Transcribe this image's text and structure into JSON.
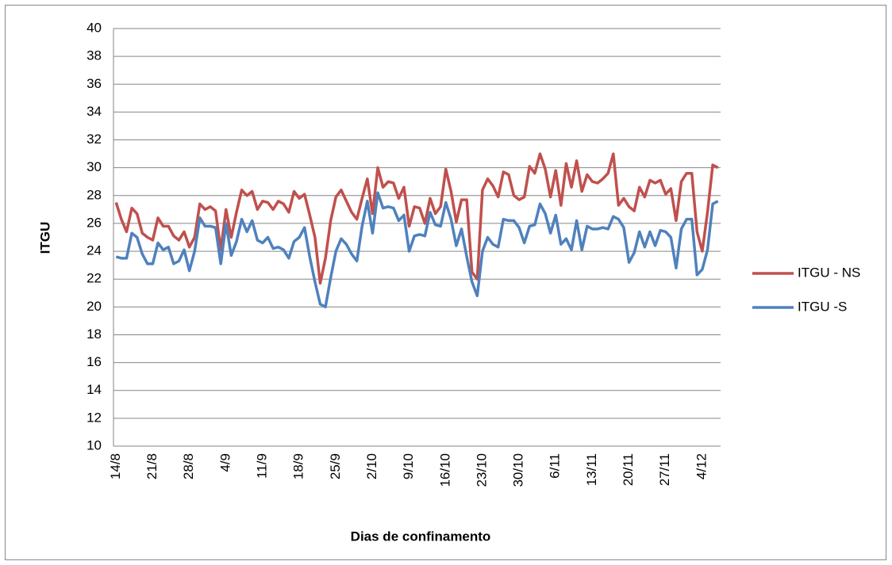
{
  "chart_data": {
    "type": "line",
    "x_label": "Dias de confinamento",
    "y_label": "ITGU",
    "categories": [
      "14/8",
      null,
      null,
      null,
      null,
      null,
      null,
      "21/8",
      null,
      null,
      null,
      null,
      null,
      null,
      "28/8",
      null,
      null,
      null,
      null,
      null,
      null,
      "4/9",
      null,
      null,
      null,
      null,
      null,
      null,
      "11/9",
      null,
      null,
      null,
      null,
      null,
      null,
      "18/9",
      null,
      null,
      null,
      null,
      null,
      null,
      "25/9",
      null,
      null,
      null,
      null,
      null,
      null,
      "2/10",
      null,
      null,
      null,
      null,
      null,
      null,
      "9/10",
      null,
      null,
      null,
      null,
      null,
      null,
      "16/10",
      null,
      null,
      null,
      null,
      null,
      null,
      "23/10",
      null,
      null,
      null,
      null,
      null,
      null,
      "30/10",
      null,
      null,
      null,
      null,
      null,
      null,
      "6/11",
      null,
      null,
      null,
      null,
      null,
      null,
      "13/11",
      null,
      null,
      null,
      null,
      null,
      null,
      "20/11",
      null,
      null,
      null,
      null,
      null,
      null,
      "27/11",
      null,
      null,
      null,
      null,
      null,
      null,
      "4/12",
      null,
      null,
      null
    ],
    "series": [
      {
        "name": "ITGU - NS",
        "color": "#C0504D",
        "values": [
          27.5,
          26.3,
          25.4,
          27.1,
          26.7,
          25.3,
          25.0,
          24.8,
          26.4,
          25.8,
          25.8,
          25.1,
          24.8,
          25.4,
          24.3,
          25.0,
          27.4,
          27.0,
          27.2,
          26.9,
          24.1,
          27.0,
          25.0,
          26.8,
          28.4,
          28.0,
          28.3,
          27.0,
          27.6,
          27.5,
          27.0,
          27.6,
          27.4,
          26.8,
          28.3,
          27.8,
          28.1,
          26.6,
          25.0,
          21.7,
          23.5,
          26.2,
          27.9,
          28.4,
          27.6,
          26.8,
          26.3,
          27.8,
          29.2,
          26.7,
          30.0,
          28.6,
          29.0,
          28.9,
          27.8,
          28.6,
          25.8,
          27.2,
          27.1,
          26.0,
          27.8,
          26.7,
          27.2,
          29.9,
          28.3,
          26.1,
          27.7,
          27.7,
          22.5,
          22.0,
          28.4,
          29.2,
          28.7,
          27.9,
          29.7,
          29.5,
          28.0,
          27.7,
          27.9,
          30.1,
          29.6,
          31.0,
          29.9,
          27.9,
          29.8,
          27.3,
          30.3,
          28.6,
          30.5,
          28.3,
          29.5,
          29.0,
          28.9,
          29.2,
          29.6,
          31.0,
          27.3,
          27.8,
          27.2,
          26.9,
          28.6,
          27.9,
          29.1,
          28.9,
          29.1,
          28.1,
          28.5,
          26.2,
          29.0,
          29.6,
          29.6,
          25.4,
          24.0,
          26.8,
          30.2,
          30.0
        ]
      },
      {
        "name": "ITGU -S",
        "color": "#4F81BD",
        "values": [
          23.6,
          23.5,
          23.5,
          25.3,
          25.0,
          23.8,
          23.1,
          23.1,
          24.6,
          24.1,
          24.3,
          23.1,
          23.3,
          24.1,
          22.6,
          24.0,
          26.4,
          25.8,
          25.8,
          25.7,
          23.1,
          26.0,
          23.7,
          24.7,
          26.3,
          25.4,
          26.2,
          24.8,
          24.6,
          25.0,
          24.2,
          24.3,
          24.1,
          23.5,
          24.7,
          25.0,
          25.7,
          23.6,
          21.8,
          20.2,
          20.0,
          22.1,
          24.0,
          24.9,
          24.5,
          23.8,
          23.3,
          25.8,
          27.6,
          25.3,
          28.2,
          27.1,
          27.2,
          27.1,
          26.2,
          26.6,
          24.0,
          25.1,
          25.2,
          25.1,
          26.8,
          25.9,
          25.8,
          27.5,
          26.3,
          24.4,
          25.6,
          23.6,
          21.8,
          20.8,
          24.0,
          25.0,
          24.5,
          24.3,
          26.3,
          26.2,
          26.2,
          25.7,
          24.6,
          25.8,
          25.9,
          27.4,
          26.7,
          25.3,
          26.6,
          24.5,
          24.9,
          24.1,
          26.2,
          24.1,
          25.8,
          25.6,
          25.6,
          25.7,
          25.6,
          26.5,
          26.3,
          25.7,
          23.2,
          23.9,
          25.4,
          24.3,
          25.4,
          24.4,
          25.5,
          25.4,
          25.0,
          22.8,
          25.6,
          26.3,
          26.3,
          22.3,
          22.7,
          24.1,
          27.4,
          27.6
        ]
      }
    ],
    "ylim": [
      10,
      40
    ],
    "yticks": [
      10,
      12,
      14,
      16,
      18,
      20,
      22,
      24,
      26,
      28,
      30,
      32,
      34,
      36,
      38,
      40
    ],
    "grid": true,
    "legend": "right"
  }
}
